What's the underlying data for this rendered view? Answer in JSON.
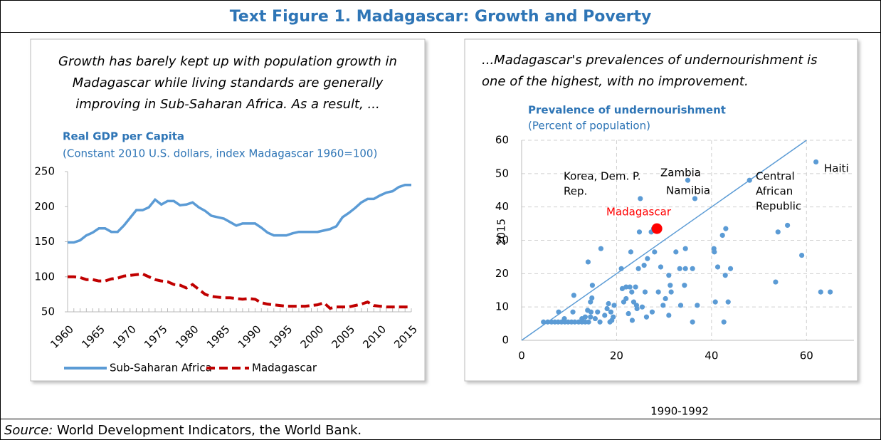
{
  "figure_title": "Text Figure 1. Madagascar: Growth and Poverty",
  "source_label": "Source:",
  "source_text": "World Development Indicators, the World Bank.",
  "chart_data": [
    {
      "type": "line",
      "caption": [
        "Growth has barely kept up with population growth in",
        "Madagascar while living standards are generally",
        "improving in Sub-Saharan Africa. As a result, ..."
      ],
      "title": "Real GDP per Capita",
      "subtitle": "(Constant 2010 U.S. dollars, index Madagascar 1960=100)",
      "x": [
        1960,
        1961,
        1962,
        1963,
        1964,
        1965,
        1966,
        1967,
        1968,
        1969,
        1970,
        1971,
        1972,
        1973,
        1974,
        1975,
        1976,
        1977,
        1978,
        1979,
        1980,
        1981,
        1982,
        1983,
        1984,
        1985,
        1986,
        1987,
        1988,
        1989,
        1990,
        1991,
        1992,
        1993,
        1994,
        1995,
        1996,
        1997,
        1998,
        1999,
        2000,
        2001,
        2002,
        2003,
        2004,
        2005,
        2006,
        2007,
        2008,
        2009,
        2010,
        2011,
        2012,
        2013,
        2014,
        2015
      ],
      "xlim": [
        1960,
        2015
      ],
      "xticks": [
        1960,
        1965,
        1970,
        1975,
        1980,
        1985,
        1990,
        1995,
        2000,
        2005,
        2010,
        2015
      ],
      "ylim": [
        50,
        250
      ],
      "yticks": [
        50,
        100,
        150,
        200,
        250
      ],
      "legend": "bottom",
      "series": [
        {
          "name": "Sub-Saharan Africa",
          "color": "#5b9bd5",
          "dash": false,
          "values": [
            149,
            149,
            152,
            159,
            163,
            169,
            169,
            164,
            164,
            173,
            184,
            195,
            195,
            199,
            210,
            203,
            208,
            208,
            202,
            203,
            206,
            199,
            194,
            187,
            185,
            183,
            178,
            173,
            176,
            176,
            176,
            170,
            163,
            159,
            159,
            159,
            162,
            164,
            164,
            164,
            164,
            166,
            168,
            172,
            185,
            191,
            198,
            206,
            211,
            211,
            216,
            220,
            222,
            228,
            231,
            231
          ]
        },
        {
          "name": "Madagascar",
          "color": "#c00000",
          "dash": true,
          "values": [
            100,
            100,
            99,
            96,
            96,
            94,
            94,
            97,
            98,
            101,
            102,
            103,
            104,
            100,
            96,
            94,
            93,
            89,
            88,
            84,
            89,
            82,
            75,
            72,
            71,
            70,
            70,
            69,
            68,
            69,
            68,
            63,
            61,
            60,
            59,
            58,
            58,
            58,
            58,
            59,
            60,
            63,
            55,
            57,
            57,
            57,
            59,
            61,
            64,
            59,
            58,
            57,
            57,
            57,
            57,
            57
          ]
        }
      ]
    },
    {
      "type": "scatter",
      "caption": [
        "...Madagascar's prevalences of undernourishment  is",
        "one of the highest,  with no improvement."
      ],
      "title": "Prevalence of undernourishment",
      "subtitle": "(Percent of population)",
      "xlabel": "1990-1992",
      "ylabel": "2015",
      "xlim": [
        0,
        70
      ],
      "xticks": [
        0,
        20,
        40,
        60
      ],
      "ylim": [
        0,
        60
      ],
      "yticks": [
        0,
        10,
        20,
        30,
        40,
        50,
        60
      ],
      "grid": true,
      "color": "#5b9bd5",
      "diagonal": {
        "x": [
          0,
          60
        ],
        "y": [
          0,
          60
        ],
        "color": "#5b9bd5"
      },
      "x": [
        4.6,
        5.5,
        6.3,
        7,
        7.7,
        8.4,
        9.1,
        9.8,
        10.5,
        11.2,
        12,
        12.7,
        13.4,
        14.1,
        7.8,
        9,
        10.8,
        11,
        12.7,
        13.4,
        13.9,
        14,
        14.5,
        14.8,
        14.9,
        14.6,
        14.5,
        15.5,
        16,
        16.7,
        16.5,
        17.5,
        18,
        18.3,
        18.6,
        18.8,
        19.3,
        19.5,
        19,
        21,
        21.2,
        21.5,
        22,
        22,
        22.5,
        22.8,
        23,
        23.2,
        23.3,
        23.6,
        24,
        24.2,
        24.3,
        24.6,
        24.8,
        25,
        25.4,
        25.8,
        26,
        26.3,
        26.5,
        27.3,
        27.5,
        27.8,
        28,
        28.8,
        29.3,
        29.8,
        30.3,
        31,
        31,
        31.3,
        31.5,
        32.5,
        33.3,
        33.5,
        34.3,
        34.5,
        34.5,
        35,
        36,
        36,
        36.5,
        37,
        40.5,
        40.6,
        40.8,
        41.3,
        42.3,
        42.6,
        42.9,
        43,
        43.5,
        44,
        48,
        53.5,
        54,
        56,
        59,
        62,
        63,
        65
      ],
      "y": [
        5.5,
        5.5,
        5.5,
        5.5,
        5.5,
        5.5,
        5.5,
        5.5,
        5.5,
        5.5,
        5.5,
        5.5,
        5.5,
        5.5,
        8.5,
        6.5,
        8.5,
        13.5,
        6.5,
        7,
        9,
        23.5,
        11.5,
        12.7,
        16.5,
        8.5,
        7,
        6.5,
        8.5,
        27.5,
        5.5,
        7.5,
        9.5,
        11,
        5.5,
        8.5,
        7,
        10.5,
        6,
        21.5,
        15.5,
        11.5,
        16,
        12.5,
        8,
        16,
        26.5,
        14.5,
        6,
        11.5,
        16,
        10.5,
        9.5,
        21.5,
        32.5,
        42.5,
        10,
        22.5,
        14.5,
        7,
        24.5,
        32.5,
        8.5,
        33.5,
        26.5,
        14.5,
        22,
        10.5,
        12.5,
        19.5,
        7.5,
        16.5,
        14.5,
        26.5,
        21.5,
        10.5,
        16.5,
        21.5,
        27.5,
        48,
        5.5,
        21.5,
        42.5,
        10.5,
        27.5,
        26.5,
        11.5,
        22,
        31.5,
        5.5,
        19.5,
        33.5,
        11.5,
        21.5,
        48,
        17.5,
        32.5,
        34.5,
        25.5,
        53.5,
        14.5,
        14.5
      ],
      "highlight": {
        "x": 28.5,
        "y": 33.5,
        "color": "#ff0000"
      },
      "annotations": [
        {
          "lines": [
            "Zambia"
          ]
        },
        {
          "lines": [
            "Korea, Dem. P.",
            "Rep."
          ]
        },
        {
          "lines": [
            "Namibia"
          ]
        },
        {
          "lines": [
            "Madagascar"
          ],
          "color": "#ff0000"
        },
        {
          "lines": [
            "Central",
            "African",
            "Republic"
          ]
        },
        {
          "lines": [
            "Haiti"
          ]
        }
      ]
    }
  ]
}
